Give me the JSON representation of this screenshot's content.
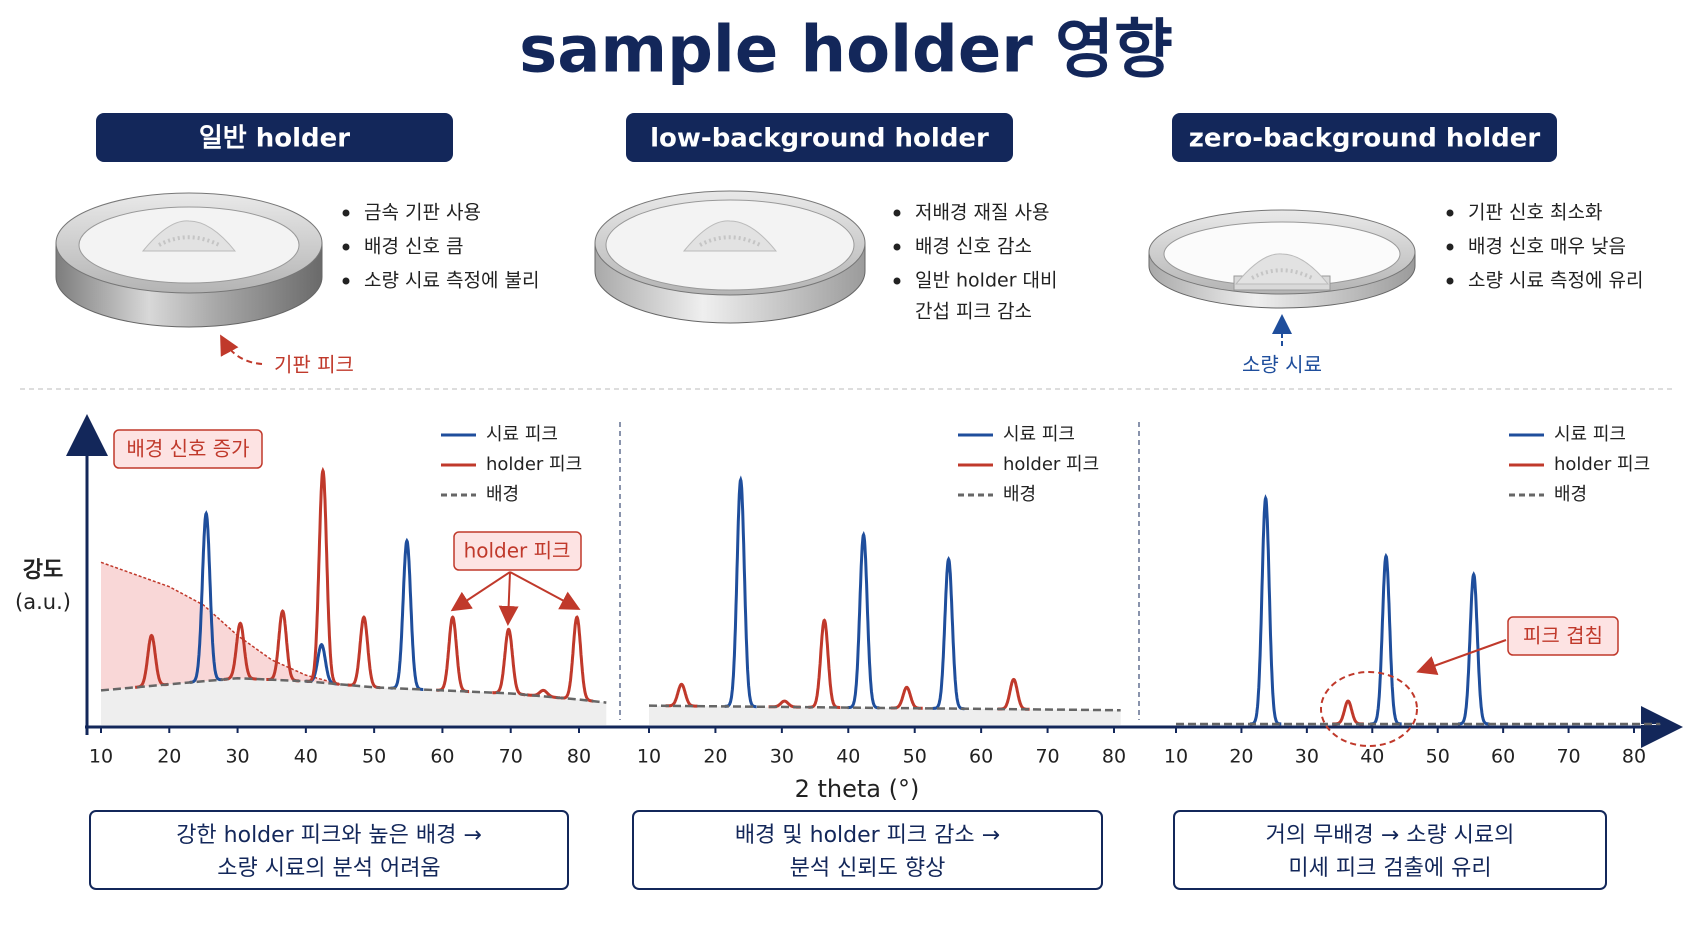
{
  "title": "sample holder 영향",
  "axis": {
    "y_label": [
      "강도",
      "(a.u.)"
    ],
    "x_label": "2 theta (°)"
  },
  "panels": [
    {
      "header": "일반 holder",
      "bullets": [
        [
          "금속 기판 사용"
        ],
        [
          "배경 신호 큼"
        ],
        [
          "소량 시료 측정에 불리"
        ]
      ],
      "callout": "기판 피크",
      "annotations": [
        "배경 신호 증가",
        "holder 피크"
      ],
      "summary": [
        "강한 holder 피크와 높은 배경 →",
        "소량 시료의 분석 어려움"
      ],
      "chart": {
        "type": "line",
        "xlim": [
          10,
          80
        ],
        "xticks": [
          10,
          20,
          30,
          40,
          50,
          60,
          70,
          80
        ],
        "ylim": [
          0,
          100
        ],
        "background": {
          "name": "배경",
          "color": "#666666",
          "x": [
            10,
            20,
            30,
            40,
            50,
            60,
            70,
            80,
            84
          ],
          "values": [
            12,
            14,
            16,
            15,
            13,
            12,
            11,
            9,
            8
          ]
        },
        "holder_background": {
          "color": "#c0392b",
          "x": [
            10,
            15,
            20,
            25,
            30,
            35,
            40,
            45
          ],
          "values": [
            54,
            50,
            46,
            40,
            30,
            22,
            17,
            14
          ]
        },
        "series": [
          {
            "name": "시료 피크",
            "color": "#1f4e9c",
            "x": [
              25.4,
              42.3,
              54.8
            ],
            "values": [
              70,
              27,
              61
            ]
          },
          {
            "name": "holder 피크",
            "color": "#c0392b",
            "x": [
              17.4,
              30.4,
              36.6,
              42.5,
              48.5,
              61.5,
              69.7,
              74.8,
              79.7
            ],
            "values": [
              30,
              34,
              38,
              84,
              36,
              36,
              32,
              12,
              36
            ]
          }
        ]
      }
    },
    {
      "header": "low-background holder",
      "bullets": [
        [
          "저배경 재질 사용"
        ],
        [
          "배경 신호 감소"
        ],
        [
          "일반 holder 대비",
          "간섭 피크 감소"
        ]
      ],
      "summary": [
        "배경 및 holder 피크 감소 →",
        "분석 신뢰도 향상"
      ],
      "chart": {
        "type": "line",
        "xlim": [
          10,
          80
        ],
        "xticks": [
          10,
          20,
          30,
          40,
          50,
          60,
          70,
          80
        ],
        "ylim": [
          0,
          100
        ],
        "background": {
          "name": "배경",
          "color": "#666666",
          "x": [
            10,
            81
          ],
          "values": [
            7,
            5.5
          ]
        },
        "series": [
          {
            "name": "시료 피크",
            "color": "#1f4e9c",
            "x": [
              23.8,
              42.3,
              55.1
            ],
            "values": [
              81,
              63,
              55
            ]
          },
          {
            "name": "holder 피크",
            "color": "#c0392b",
            "x": [
              14.9,
              30.4,
              36.4,
              48.8,
              64.9
            ],
            "values": [
              14,
              8.5,
              35,
              13,
              15.6
            ]
          }
        ]
      }
    },
    {
      "header": "zero-background holder",
      "bullets": [
        [
          "기판 신호 최소화"
        ],
        [
          "배경 신호 매우 낮음"
        ],
        [
          "소량 시료 측정에 유리"
        ]
      ],
      "callout": "소량 시료",
      "annotations": [
        "피크 겹침"
      ],
      "summary": [
        "거의 무배경 → 소량 시료의",
        "미세 피크 검출에 유리"
      ],
      "chart": {
        "type": "line",
        "xlim": [
          10,
          80
        ],
        "xticks": [
          10,
          20,
          30,
          40,
          50,
          60,
          70,
          80
        ],
        "ylim": [
          0,
          100
        ],
        "background": {
          "name": "배경",
          "color": "#666666",
          "x": [
            10,
            84
          ],
          "values": [
            1,
            1
          ]
        },
        "series": [
          {
            "name": "시료 피크",
            "color": "#1f4e9c",
            "x": [
              23.7,
              42.1,
              55.5
            ],
            "values": [
              75,
              56,
              50
            ]
          },
          {
            "name": "holder 피크",
            "color": "#c0392b",
            "x": [
              36.3
            ],
            "values": [
              8.5
            ]
          }
        ]
      }
    }
  ]
}
